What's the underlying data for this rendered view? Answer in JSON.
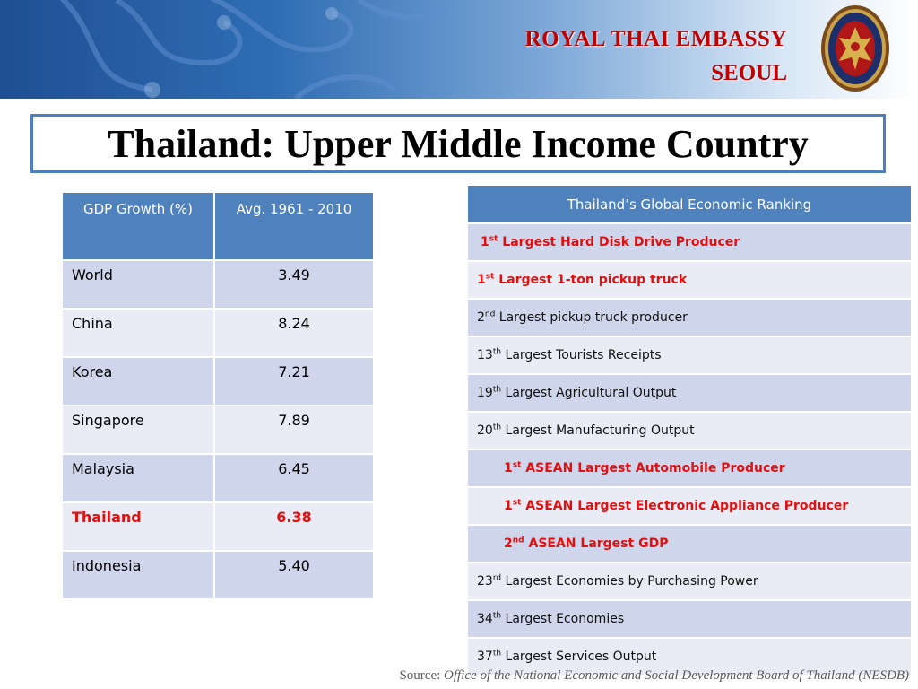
{
  "header": {
    "embassy_line1": "ROYAL THAI EMBASSY",
    "embassy_line2": "SEOUL"
  },
  "slide_title": "Thailand: Upper Middle Income Country",
  "gdp_table": {
    "headers": [
      "GDP Growth (%)",
      "Avg. 1961 - 2010"
    ],
    "rows": [
      {
        "country": "World",
        "value": "3.49"
      },
      {
        "country": "China",
        "value": "8.24"
      },
      {
        "country": "Korea",
        "value": "7.21"
      },
      {
        "country": "Singapore",
        "value": "7.89"
      },
      {
        "country": "Malaysia",
        "value": "6.45"
      },
      {
        "country": "Thailand",
        "value": "6.38"
      },
      {
        "country": "Indonesia",
        "value": "5.40"
      }
    ]
  },
  "ranking_table": {
    "header": "Thailand’s Global Economic Ranking",
    "rows": [
      {
        "rank": "1",
        "suffix": "st",
        "text": "Largest Hard Disk Drive Producer"
      },
      {
        "rank": "1",
        "suffix": "st",
        "text": "Largest 1-ton pickup truck"
      },
      {
        "rank": "2",
        "suffix": "nd",
        "text": "Largest pickup truck producer"
      },
      {
        "rank": "13",
        "suffix": "th",
        "text": "Largest Tourists Receipts"
      },
      {
        "rank": "19",
        "suffix": "th",
        "text": "Largest Agricultural Output"
      },
      {
        "rank": "20",
        "suffix": "th",
        "text": "Largest Manufacturing Output"
      },
      {
        "rank": "1",
        "suffix": "st",
        "text": "ASEAN Largest Automobile Producer"
      },
      {
        "rank": "1",
        "suffix": "st",
        "text": "ASEAN Largest Electronic Appliance Producer"
      },
      {
        "rank": "2",
        "suffix": "nd",
        "text": "ASEAN Largest GDP"
      },
      {
        "rank": "23",
        "suffix": "rd",
        "text": "Largest Economies by Purchasing Power"
      },
      {
        "rank": "34",
        "suffix": "th",
        "text": "Largest Economies"
      },
      {
        "rank": "37",
        "suffix": "th",
        "text": "Largest Services Output"
      }
    ]
  },
  "source": {
    "label": "Source:",
    "text": "Office of the National Economic and Social Development Board  of Thailand (NESDB)"
  },
  "colors": {
    "header_blue": "#4f81bd",
    "highlight_red": "#e01010",
    "embassy_red": "#c00000"
  }
}
